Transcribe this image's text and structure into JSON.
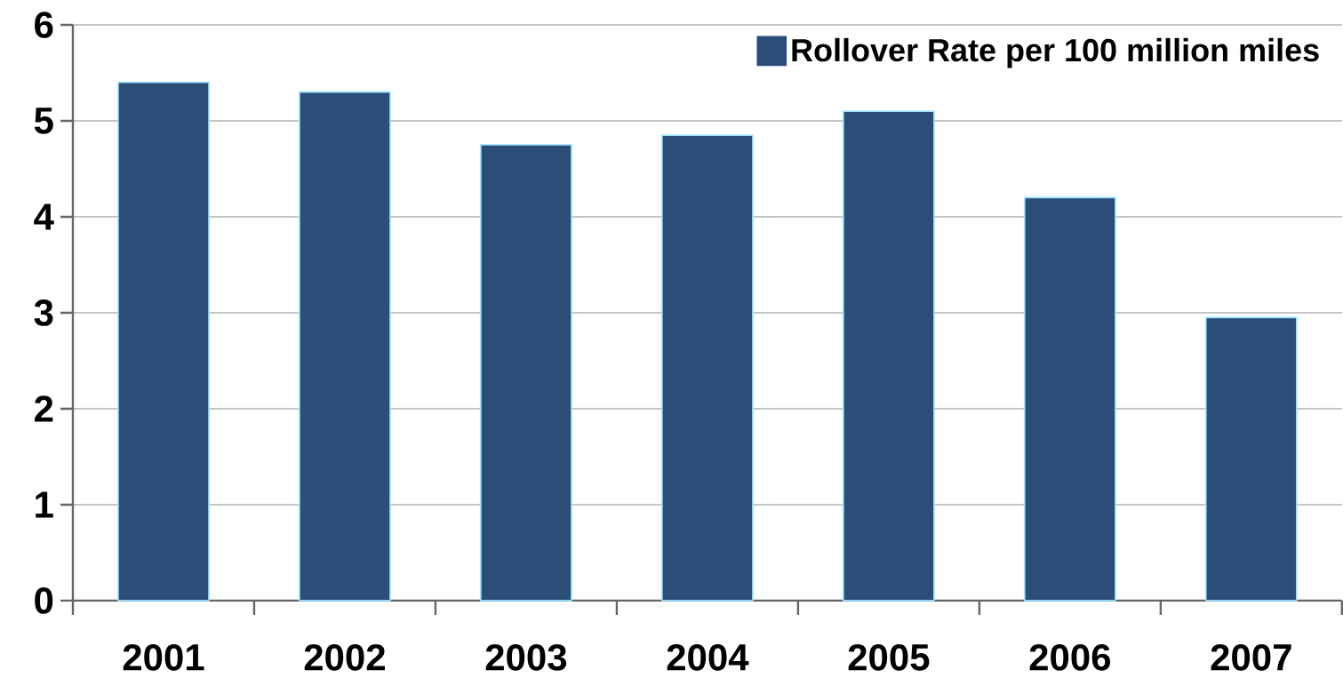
{
  "chart_data": {
    "type": "bar",
    "categories": [
      "2001",
      "2002",
      "2003",
      "2004",
      "2005",
      "2006",
      "2007"
    ],
    "series": [
      {
        "name": "Rollover Rate per 100 million miles",
        "color": "#2b4d78",
        "values": [
          5.4,
          5.3,
          4.75,
          4.85,
          5.1,
          4.2,
          2.95
        ]
      }
    ],
    "ylim": [
      0,
      6
    ],
    "yticks": [
      0,
      1,
      2,
      3,
      4,
      5,
      6
    ],
    "grid": "y",
    "legend": "top right"
  }
}
